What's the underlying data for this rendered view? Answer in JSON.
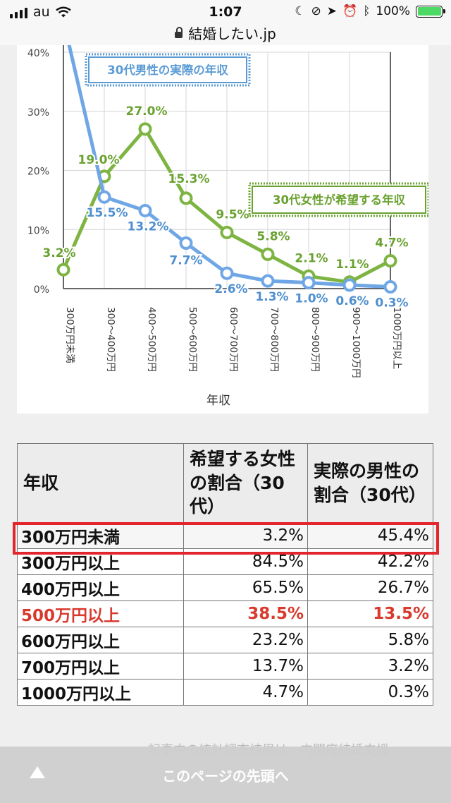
{
  "status_bar": {
    "carrier": "au",
    "time": "1:07",
    "battery": "100%"
  },
  "address_bar": {
    "url": "結婚したい.jp"
  },
  "chart_data": {
    "type": "line",
    "xlabel": "年収",
    "categories": [
      "300万円未満",
      "300〜400万円",
      "400〜500万円",
      "500〜600万円",
      "600〜700万円",
      "700〜800万円",
      "800〜900万円",
      "900〜1000万円",
      "1000万円以上"
    ],
    "y_ticks": [
      "0%",
      "10%",
      "20%",
      "30%",
      "40%"
    ],
    "ylim": [
      0,
      40
    ],
    "grid": true,
    "series": [
      {
        "name": "30代男性の実際の年収",
        "color": "#6fa6e6",
        "values": [
          45.4,
          15.5,
          13.2,
          7.7,
          2.6,
          1.3,
          1.0,
          0.6,
          0.3
        ],
        "labels": [
          "",
          "15.5%",
          "13.2%",
          "7.7%",
          "2.6%",
          "1.3%",
          "1.0%",
          "0.6%",
          "0.3%"
        ]
      },
      {
        "name": "30代女性が希望する年収",
        "color": "#7db442",
        "values": [
          3.2,
          19.0,
          27.0,
          15.3,
          9.5,
          5.8,
          2.1,
          1.1,
          4.7
        ],
        "labels": [
          "3.2%",
          "19.0%",
          "27.0%",
          "15.3%",
          "9.5%",
          "5.8%",
          "2.1%",
          "1.1%",
          "4.7%"
        ]
      }
    ]
  },
  "table": {
    "headers": [
      "年収",
      "希望する女性の割合（30代）",
      "実際の男性の割合（30代）"
    ],
    "rows": [
      [
        "300万円未満",
        "3.2%",
        "45.4%"
      ],
      [
        "300万円以上",
        "84.5%",
        "42.2%"
      ],
      [
        "400万円以上",
        "65.5%",
        "26.7%"
      ],
      [
        "500万円以上",
        "38.5%",
        "13.5%"
      ],
      [
        "600万円以上",
        "23.2%",
        "5.8%"
      ],
      [
        "700万円以上",
        "13.7%",
        "3.2%"
      ],
      [
        "1000万円以上",
        "4.7%",
        "0.3%"
      ]
    ]
  },
  "bottom_bar": {
    "label": "このページの先頭へ",
    "behind_text": "記事中の統計調査結果は、内閣府結婚支援"
  },
  "colors": {
    "highlight": "#d83a2e",
    "box": "#e3262e"
  }
}
